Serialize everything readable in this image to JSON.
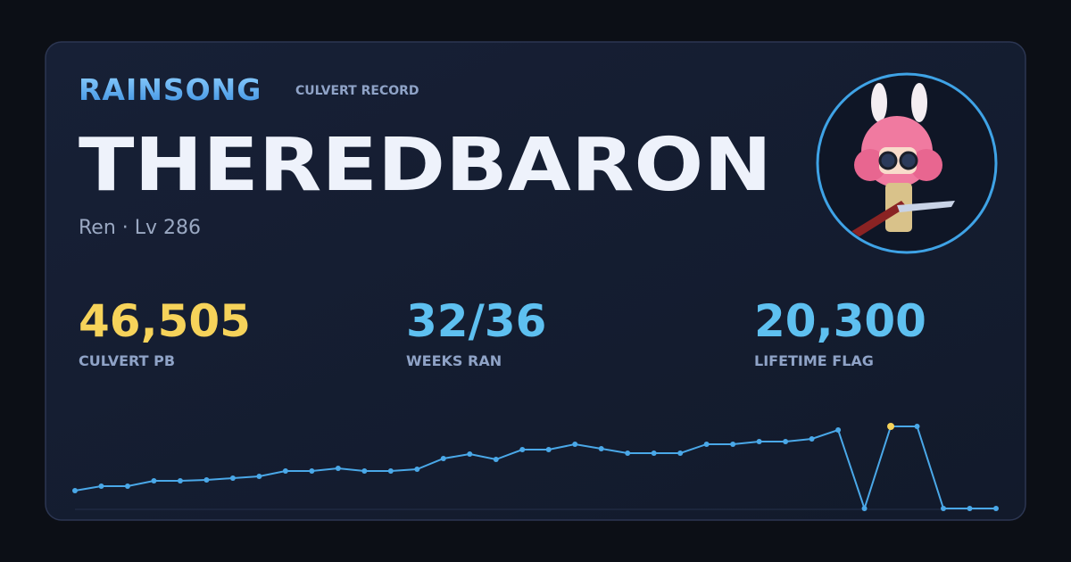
{
  "brand": "RAINSONG",
  "subtitle": "CULVERT RECORD",
  "character": {
    "name": "THEREDBARON",
    "info": "Ren · Lv 286"
  },
  "stats": [
    {
      "value": "46,505",
      "label": "CULVERT PB",
      "color": "#f6d35a"
    },
    {
      "value": "32/36",
      "label": "WEEKS RAN",
      "color": "#5ec0f0"
    },
    {
      "value": "20,300",
      "label": "LIFETIME FLAG",
      "color": "#5ec0f0"
    }
  ],
  "sparkline": {
    "type": "line",
    "color": "#4aa8e8",
    "highlight": 31,
    "highlight_color": "#f6d35a",
    "values": [
      10110,
      12640,
      12640,
      15670,
      15670,
      16180,
      17190,
      18200,
      21230,
      21230,
      22750,
      21230,
      21230,
      22240,
      28310,
      30840,
      27800,
      33360,
      33360,
      36400,
      33870,
      31340,
      31340,
      31340,
      36400,
      36400,
      37910,
      37910,
      39430,
      44480,
      0,
      46505,
      46505,
      0,
      0,
      0
    ]
  }
}
